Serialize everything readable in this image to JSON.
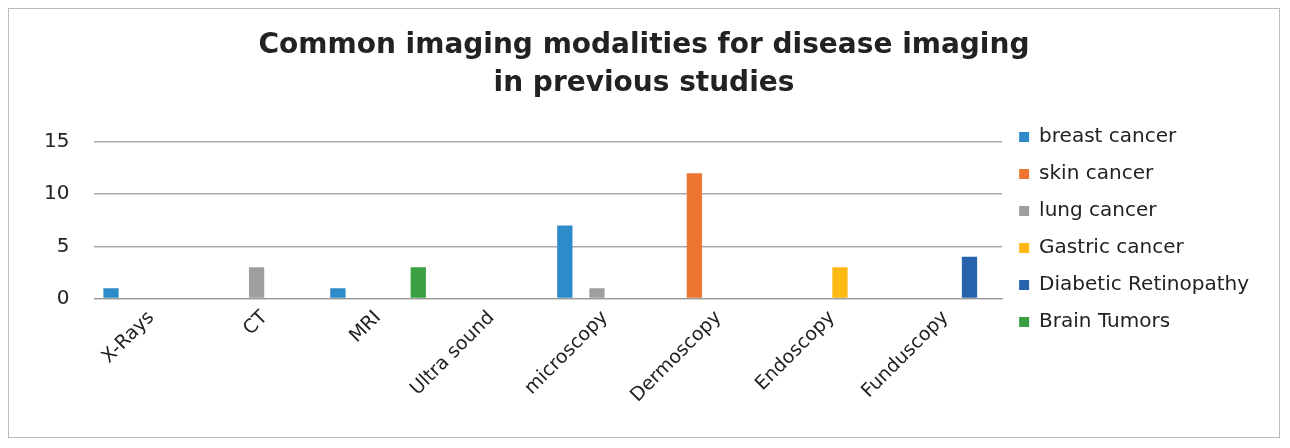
{
  "chart_data": {
    "type": "bar",
    "title": "Common imaging modalities for disease imaging in previous studies",
    "categories": [
      "X-Rays",
      "CT",
      "MRI",
      "Ultra sound",
      "microscopy",
      "Dermoscopy",
      "Endoscopy",
      "Funduscopy"
    ],
    "series": [
      {
        "name": "breast cancer",
        "color": "#2e8bc9",
        "values": [
          1,
          null,
          1,
          null,
          7,
          null,
          null,
          null
        ]
      },
      {
        "name": "skin cancer",
        "color": "#ed7431",
        "values": [
          null,
          null,
          null,
          null,
          null,
          12,
          null,
          null
        ]
      },
      {
        "name": "lung cancer",
        "color": "#9e9e9e",
        "values": [
          null,
          3,
          null,
          null,
          1,
          null,
          null,
          null
        ]
      },
      {
        "name": "Gastric cancer",
        "color": "#fdb913",
        "values": [
          null,
          null,
          null,
          null,
          null,
          null,
          3,
          null
        ]
      },
      {
        "name": "Diabetic Retinopathy",
        "color": "#2563ad",
        "values": [
          null,
          null,
          null,
          null,
          null,
          null,
          null,
          4
        ]
      },
      {
        "name": "Brain Tumors",
        "color": "#3aa043",
        "values": [
          null,
          null,
          3,
          null,
          null,
          null,
          null,
          null
        ]
      }
    ],
    "ylim": [
      0,
      15
    ],
    "yticks": [
      0,
      5,
      10,
      15
    ],
    "grid": "y",
    "legend": "right"
  }
}
